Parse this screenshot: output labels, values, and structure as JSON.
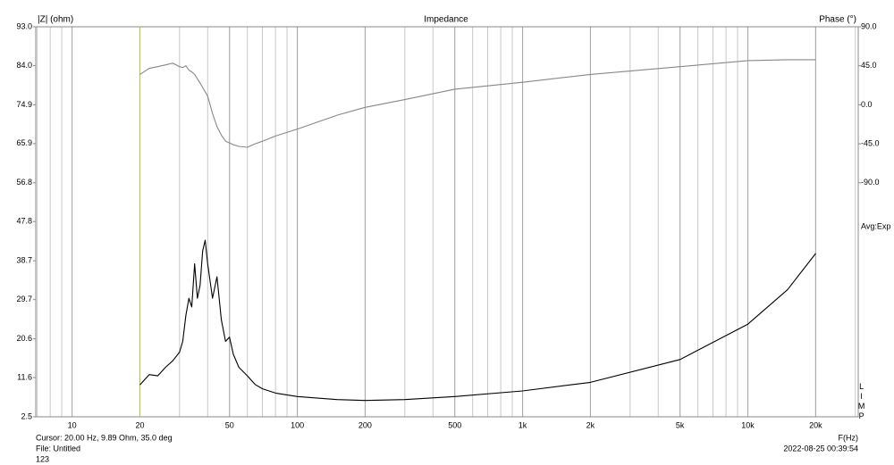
{
  "chart_data": {
    "type": "line",
    "title": "Impedance",
    "y_label": "|Z| (ohm)",
    "y2_label": "Phase (°)",
    "x_label": "F(Hz)",
    "side_note": "Avg:Exp",
    "side_tag": "LIMP",
    "cursor_text": "Cursor: 20.00 Hz, 9.89 Ohm, 35.0 deg",
    "file_text": "File: Untitled",
    "file_id": "123",
    "timestamp": "2022-08-25 00:39:54",
    "x_log": true,
    "grid": true,
    "xlim": [
      6.9,
      30900
    ],
    "xticks": [
      10,
      20,
      50,
      100,
      200,
      500,
      {
        "value": 1000,
        "label": "1k"
      },
      {
        "value": 2000,
        "label": "2k"
      },
      {
        "value": 5000,
        "label": "5k"
      },
      {
        "value": 10000,
        "label": "10k"
      },
      {
        "value": 20000,
        "label": "20k"
      }
    ],
    "ylim": [
      2.5,
      93.0
    ],
    "yticks": [
      2.5,
      11.6,
      20.6,
      29.7,
      38.7,
      47.8,
      56.8,
      65.9,
      74.9,
      {
        "value": 84.0,
        "label": "84.0"
      },
      {
        "value": 93.0,
        "label": "93.0"
      }
    ],
    "y2lim": [
      -360,
      90
    ],
    "y2ticks": [
      {
        "value": 90,
        "label": "90.0"
      },
      {
        "value": 45,
        "label": "45.0"
      },
      {
        "value": 0,
        "label": "0.0"
      },
      {
        "value": -45,
        "label": "-45.0"
      },
      {
        "value": -90,
        "label": "-90.0"
      }
    ],
    "x": [
      20,
      22,
      24,
      26,
      28,
      30,
      31,
      32,
      33,
      34,
      35,
      36,
      37,
      38,
      39,
      40,
      42,
      44,
      46,
      48,
      50,
      52,
      55,
      60,
      65,
      70,
      80,
      100,
      150,
      200,
      300,
      500,
      1000,
      2000,
      5000,
      10000,
      15000,
      20000
    ],
    "series": [
      {
        "name": "Impedance",
        "color": "#000000",
        "values": [
          9.9,
          12.3,
          12,
          14,
          15.5,
          17.5,
          20,
          26,
          30,
          28,
          38,
          30,
          33,
          41,
          43.5,
          38,
          30,
          35,
          25,
          20,
          21,
          17,
          14,
          12,
          10,
          9,
          8,
          7.2,
          6.5,
          6.3,
          6.5,
          7.2,
          8.5,
          10.5,
          15.8,
          24,
          32,
          40.4
        ]
      },
      {
        "name": "Phase",
        "color": "#888888",
        "axis": "y2",
        "values": [
          35,
          42,
          44,
          46,
          48,
          44,
          43,
          45,
          40,
          38,
          35,
          30,
          25,
          20,
          15,
          10,
          -10,
          -25,
          -35,
          -42,
          -44,
          -46,
          -48,
          -49,
          -45,
          -42,
          -36,
          -28,
          -12,
          -3,
          6,
          18,
          26,
          35,
          44,
          51,
          52,
          52
        ]
      }
    ]
  }
}
